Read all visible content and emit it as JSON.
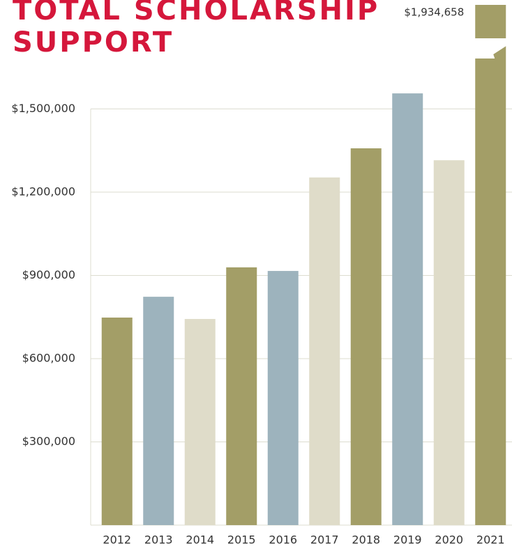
{
  "chart_data": {
    "type": "bar",
    "title": "TOTAL SCHOLARSHIP SUPPORT",
    "categories": [
      "2012",
      "2013",
      "2014",
      "2015",
      "2016",
      "2017",
      "2018",
      "2019",
      "2020",
      "2021"
    ],
    "values": [
      748000,
      823000,
      743000,
      929000,
      916000,
      1253000,
      1358000,
      1556000,
      1315000,
      1934658
    ],
    "value_labels": [
      null,
      null,
      null,
      null,
      null,
      null,
      null,
      null,
      null,
      "$1,934,658"
    ],
    "colors": [
      "#a39e67",
      "#9db3bd",
      "#dfdcc9",
      "#a39e67",
      "#9db3bd",
      "#dfdcc9",
      "#a39e67",
      "#9db3bd",
      "#dfdcc9",
      "#a39e67"
    ],
    "ylim": [
      0,
      1875000
    ],
    "yticks": [
      {
        "value": 300000,
        "label": "$300,000"
      },
      {
        "value": 600000,
        "label": "$600,000"
      },
      {
        "value": 900000,
        "label": "$900,000"
      },
      {
        "value": 1200000,
        "label": "$1,200,000"
      },
      {
        "value": 1500000,
        "label": "$1,500,000"
      }
    ],
    "grid": true
  }
}
